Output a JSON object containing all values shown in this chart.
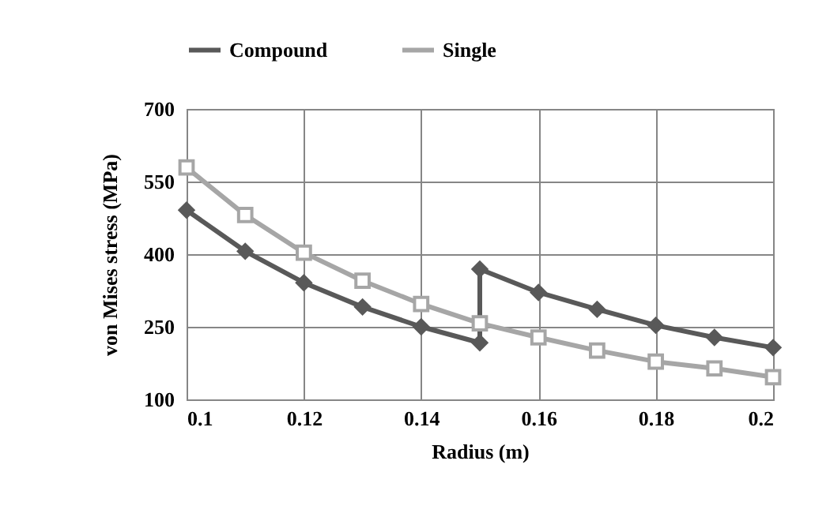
{
  "chart_data": {
    "type": "line",
    "xlabel": "Radius (m)",
    "ylabel": "von Mises stress (MPa)",
    "series": [
      {
        "name": "Compound",
        "color": "#595959",
        "marker": "diamond",
        "x": [
          0.1,
          0.11,
          0.12,
          0.13,
          0.14,
          0.15,
          0.15,
          0.16,
          0.17,
          0.18,
          0.19,
          0.2
        ],
        "values": [
          491,
          406,
          341,
          291,
          250,
          217,
          369,
          321,
          286,
          253,
          228,
          207
        ]
      },
      {
        "name": "Single",
        "color": "#a6a6a6",
        "marker": "square",
        "x": [
          0.1,
          0.11,
          0.12,
          0.13,
          0.14,
          0.15,
          0.16,
          0.17,
          0.18,
          0.19,
          0.2
        ],
        "values": [
          579,
          481,
          403,
          345,
          297,
          257,
          228,
          201,
          178,
          164,
          146
        ]
      }
    ],
    "xlim": [
      0.1,
      0.2
    ],
    "xticks": [
      0.1,
      0.12,
      0.14,
      0.16,
      0.18,
      0.2
    ],
    "ylim": [
      100,
      700
    ],
    "yticks": [
      100,
      250,
      400,
      550,
      700
    ],
    "grid": true,
    "legend": "top"
  }
}
